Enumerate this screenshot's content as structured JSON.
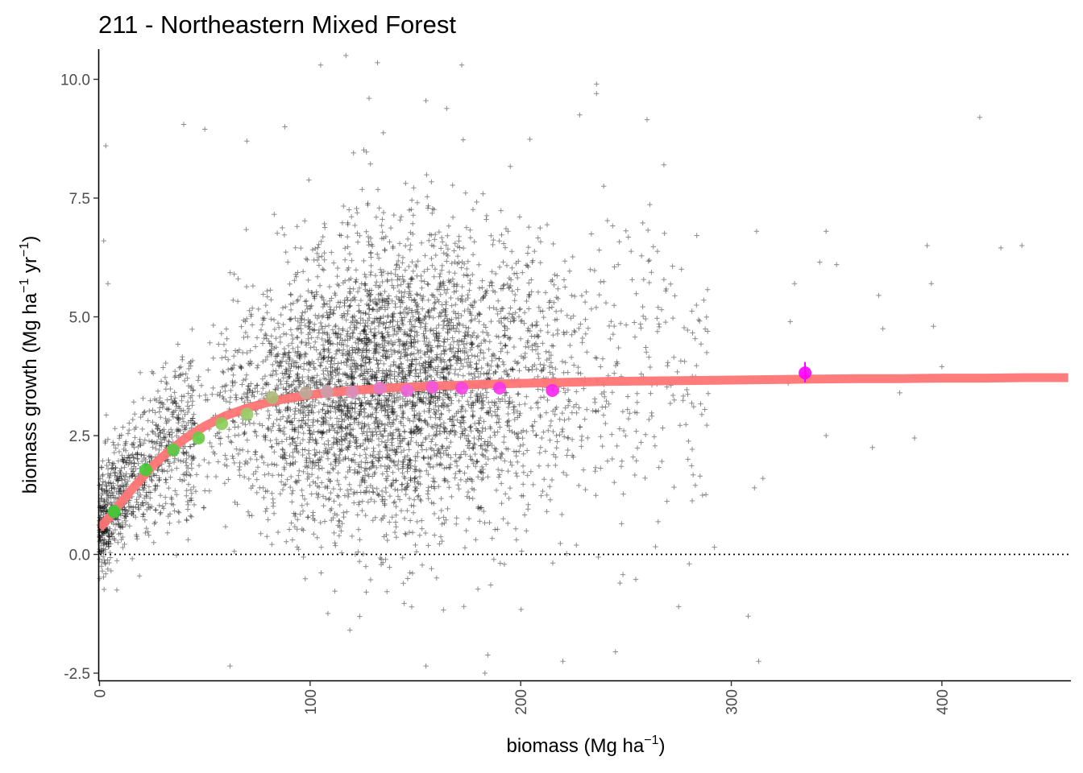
{
  "chart_data": {
    "type": "scatter",
    "title": "211 - Northeastern Mixed Forest",
    "xlabel": "biomass (Mg ha",
    "xlabel_sup": "−1",
    "xlabel_end": ")",
    "ylabel_parts": [
      {
        "text": "biomass growth (Mg ha",
        "sup": false
      },
      {
        "text": "−1",
        "sup": true
      },
      {
        "text": " yr",
        "sup": false
      },
      {
        "text": "−1",
        "sup": true
      },
      {
        "text": ")",
        "sup": false
      }
    ],
    "xlim": [
      0,
      460
    ],
    "ylim": [
      -2.55,
      10.6
    ],
    "x_ticks": [
      0,
      100,
      200,
      300,
      400
    ],
    "x_tick_labels": [
      "0",
      "100",
      "200",
      "300",
      "400"
    ],
    "y_ticks": [
      -2.5,
      0,
      2.5,
      5,
      7.5,
      10
    ],
    "y_tick_labels": [
      "-2.5",
      "0.0",
      "2.5",
      "5.0",
      "7.5",
      "10.0"
    ],
    "reference_line_y": 0,
    "grid": false,
    "colors": {
      "points": "#000000",
      "fit_line": "#ff7575",
      "reference_line": "#000000",
      "axis": "#000000"
    },
    "fit_curve": {
      "x": [
        0,
        5,
        10,
        15,
        20,
        25,
        30,
        40,
        50,
        60,
        70,
        80,
        90,
        100,
        110,
        120,
        130,
        140,
        150,
        160,
        170,
        180,
        190,
        200,
        220,
        240,
        260,
        280,
        300,
        320,
        340,
        360,
        380,
        400,
        420,
        440,
        460
      ],
      "y": [
        0.55,
        0.8,
        1.08,
        1.35,
        1.6,
        1.85,
        2.06,
        2.42,
        2.7,
        2.92,
        3.08,
        3.2,
        3.29,
        3.36,
        3.41,
        3.45,
        3.48,
        3.51,
        3.53,
        3.55,
        3.56,
        3.58,
        3.59,
        3.6,
        3.62,
        3.64,
        3.65,
        3.66,
        3.67,
        3.68,
        3.69,
        3.7,
        3.7,
        3.71,
        3.71,
        3.72,
        3.72
      ]
    },
    "binned_means": [
      {
        "x": 7,
        "y": 0.9,
        "color": "#33cc33"
      },
      {
        "x": 22,
        "y": 1.78,
        "color": "#44cc33"
      },
      {
        "x": 35,
        "y": 2.2,
        "color": "#55cc44"
      },
      {
        "x": 47,
        "y": 2.45,
        "color": "#66cc44"
      },
      {
        "x": 58,
        "y": 2.75,
        "color": "#88cc55"
      },
      {
        "x": 70,
        "y": 2.95,
        "color": "#99cc66"
      },
      {
        "x": 82,
        "y": 3.3,
        "color": "#aabb77"
      },
      {
        "x": 98,
        "y": 3.4,
        "color": "#bbaa99"
      },
      {
        "x": 108,
        "y": 3.42,
        "color": "#c8a0aa"
      },
      {
        "x": 120,
        "y": 3.42,
        "color": "#d98fbb"
      },
      {
        "x": 133,
        "y": 3.5,
        "color": "#e577cc"
      },
      {
        "x": 146,
        "y": 3.45,
        "color": "#ee66dd"
      },
      {
        "x": 158,
        "y": 3.52,
        "color": "#f255dd"
      },
      {
        "x": 172,
        "y": 3.5,
        "color": "#f544e5"
      },
      {
        "x": 190,
        "y": 3.5,
        "color": "#f733ea"
      },
      {
        "x": 215,
        "y": 3.45,
        "color": "#f922ee"
      },
      {
        "x": 335,
        "y": 3.82,
        "color": "#ff00ff",
        "err": [
          3.62,
          4.05
        ]
      }
    ],
    "point_cloud_summary": {
      "n": 5200,
      "x_main_range": [
        0,
        290
      ],
      "y_mean_range": [
        -2.5,
        10.5
      ],
      "note_outliers": [
        {
          "x": 3,
          "y": 8.6
        },
        {
          "x": 2,
          "y": 6.6
        },
        {
          "x": 4,
          "y": 5.7
        },
        {
          "x": 40,
          "y": 9.05
        },
        {
          "x": 50,
          "y": 8.95
        },
        {
          "x": 70,
          "y": 8.7
        },
        {
          "x": 88,
          "y": 9.0
        },
        {
          "x": 105,
          "y": 10.3
        },
        {
          "x": 117,
          "y": 10.5
        },
        {
          "x": 132,
          "y": 10.35
        },
        {
          "x": 172,
          "y": 10.3
        },
        {
          "x": 128,
          "y": 9.6
        },
        {
          "x": 155,
          "y": 9.55
        },
        {
          "x": 228,
          "y": 9.25
        },
        {
          "x": 236,
          "y": 9.9
        },
        {
          "x": 236,
          "y": 9.7
        },
        {
          "x": 260,
          "y": 9.15
        },
        {
          "x": 418,
          "y": 9.2
        },
        {
          "x": 268,
          "y": 8.2
        },
        {
          "x": 312,
          "y": 6.8
        },
        {
          "x": 342,
          "y": 6.15
        },
        {
          "x": 350,
          "y": 6.1
        },
        {
          "x": 345,
          "y": 6.8
        },
        {
          "x": 370,
          "y": 5.45
        },
        {
          "x": 372,
          "y": 4.75
        },
        {
          "x": 393,
          "y": 6.5
        },
        {
          "x": 395,
          "y": 5.7
        },
        {
          "x": 396,
          "y": 4.8
        },
        {
          "x": 400,
          "y": 3.95
        },
        {
          "x": 428,
          "y": 6.45
        },
        {
          "x": 438,
          "y": 6.5
        },
        {
          "x": 380,
          "y": 3.4
        },
        {
          "x": 387,
          "y": 2.45
        },
        {
          "x": 367,
          "y": 2.25
        },
        {
          "x": 345,
          "y": 2.5
        },
        {
          "x": 311,
          "y": 1.4
        },
        {
          "x": 315,
          "y": 1.6
        },
        {
          "x": 308,
          "y": -1.3
        },
        {
          "x": 313,
          "y": -2.25
        },
        {
          "x": 62,
          "y": -2.35
        },
        {
          "x": 155,
          "y": -2.35
        },
        {
          "x": 183,
          "y": -2.5
        },
        {
          "x": 220,
          "y": -2.25
        },
        {
          "x": 245,
          "y": -2.05
        },
        {
          "x": 275,
          "y": -1.1
        },
        {
          "x": 280,
          "y": -0.2
        },
        {
          "x": 292,
          "y": 0.15
        },
        {
          "x": 330,
          "y": 5.7
        },
        {
          "x": 328,
          "y": 4.9
        },
        {
          "x": 327,
          "y": 3.6
        }
      ]
    }
  }
}
